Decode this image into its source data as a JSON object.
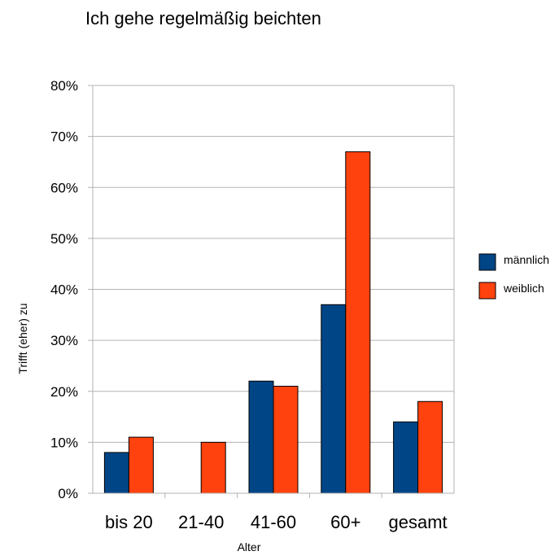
{
  "chart_data": {
    "type": "bar",
    "title": "Ich gehe regelmäßig beichten",
    "xlabel": "Alter",
    "ylabel": "Trifft (eher) zu",
    "categories": [
      "bis 20",
      "21-40",
      "41-60",
      "60+",
      "gesamt"
    ],
    "series": [
      {
        "name": "männlich",
        "values": [
          8,
          0,
          22,
          37,
          14
        ],
        "color": "#004586"
      },
      {
        "name": "weiblich",
        "values": [
          11,
          10,
          21,
          67,
          18
        ],
        "color": "#ff420e"
      }
    ],
    "ylim": [
      0,
      80
    ],
    "yticks": [
      "0%",
      "10%",
      "20%",
      "30%",
      "40%",
      "50%",
      "60%",
      "70%",
      "80%"
    ],
    "grid": true,
    "legend_position": "right"
  }
}
